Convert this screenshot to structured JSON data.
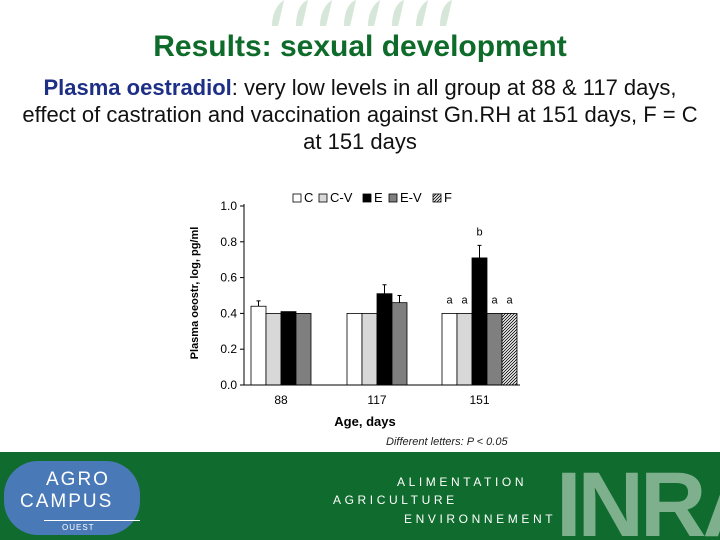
{
  "slide": {
    "title": "Results: sexual development",
    "subtitle_highlight": "Plasma oestradiol",
    "subtitle_rest": ": very low levels in all group at 88 & 117 days, effect of castration and vaccination against Gn.RH at 151 days, F = C at 151 days",
    "footnote": "Different letters: P < 0.05"
  },
  "chart_data": {
    "type": "bar",
    "title": "",
    "xlabel": "Age, days",
    "ylabel": "Plasma oeostr, log, pg/ml",
    "ylim": [
      0,
      1.0
    ],
    "yticks": [
      "0.0",
      "0.2",
      "0.4",
      "0.6",
      "0.8",
      "1.0"
    ],
    "categories": [
      "88",
      "117",
      "151"
    ],
    "series": [
      {
        "name": "C",
        "fill": "#ffffff",
        "values": [
          0.44,
          0.4,
          0.4
        ],
        "errors": [
          0.03,
          0.0,
          0.0
        ]
      },
      {
        "name": "C-V",
        "fill": "#d8d8d8",
        "values": [
          0.4,
          0.4,
          0.4
        ],
        "errors": [
          0.0,
          0.0,
          0.0
        ]
      },
      {
        "name": "E",
        "fill": "#000000",
        "values": [
          0.41,
          0.51,
          0.71
        ],
        "errors": [
          0.0,
          0.05,
          0.07
        ]
      },
      {
        "name": "E-V",
        "fill": "#7f7f7f",
        "values": [
          0.4,
          0.46,
          0.4
        ],
        "errors": [
          0.0,
          0.04,
          0.0
        ]
      },
      {
        "name": "F",
        "fill": "hatched",
        "values": [
          null,
          null,
          0.4
        ],
        "errors": [
          null,
          null,
          0.0
        ]
      }
    ],
    "significance_labels": [
      {
        "category": "151",
        "series": "C",
        "label": "a"
      },
      {
        "category": "151",
        "series": "C-V",
        "label": "a"
      },
      {
        "category": "151",
        "series": "E",
        "label": "b"
      },
      {
        "category": "151",
        "series": "E-V",
        "label": "a"
      },
      {
        "category": "151",
        "series": "F",
        "label": "a"
      }
    ],
    "legend_position": "top"
  },
  "footer": {
    "logo_line1": "AGRO",
    "logo_line2": "CAMPUS",
    "logo_line3": "OUEST",
    "word1": "ALIMENTATION",
    "word2": "AGRICULTURE",
    "word3": "ENVIRONNEMENT",
    "inra_text": "INRA",
    "colors": {
      "band": "#106c2e",
      "logo": "#4a79b8",
      "title": "#0e6b2a",
      "highlight": "#1e2f86"
    }
  }
}
